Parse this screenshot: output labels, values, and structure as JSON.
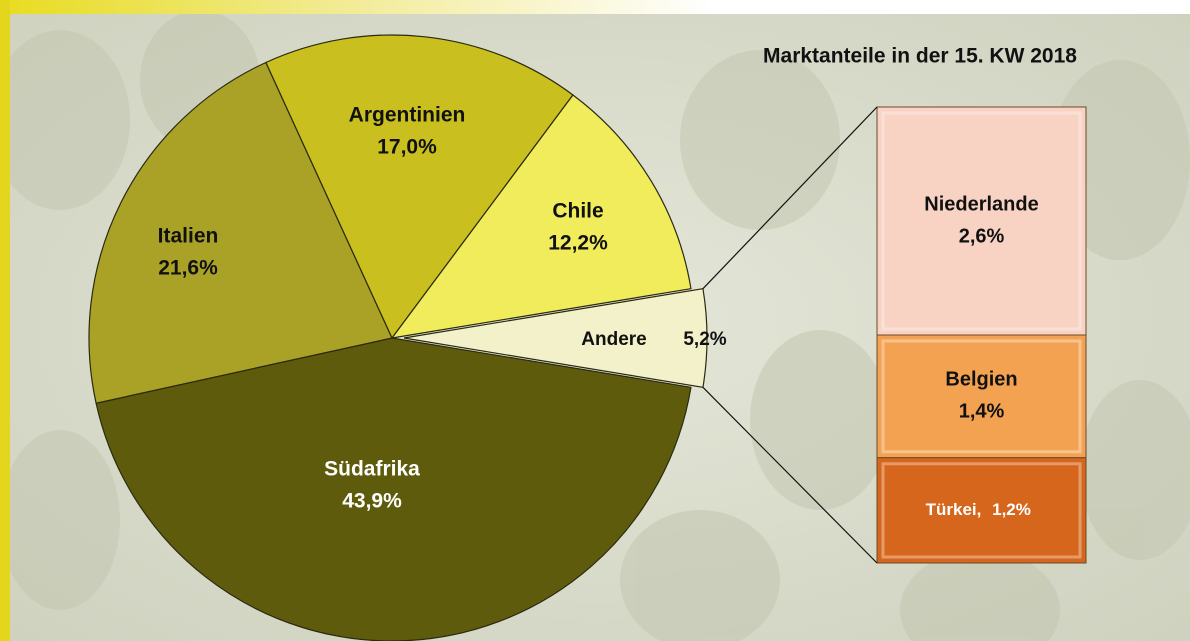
{
  "chart_data": {
    "type": "pie",
    "title": "Marktanteile in der 15. KW 2018",
    "categories": [
      "Südafrika",
      "Italien",
      "Argentinien",
      "Chile",
      "Andere"
    ],
    "values": [
      43.9,
      21.6,
      17.0,
      12.2,
      5.2
    ],
    "value_labels": [
      "43,9%",
      "21,6%",
      "17,0%",
      "12,2%",
      "5,2%"
    ],
    "colors": [
      "#5e5c0c",
      "#aaa226",
      "#c9bf1e",
      "#f1ec5c",
      "#f3f1c9"
    ],
    "breakout": {
      "type": "bar",
      "categories": [
        "Niederlande",
        "Belgien",
        "Türkei,"
      ],
      "values": [
        2.6,
        1.4,
        1.2
      ],
      "value_labels": [
        "2,6%",
        "1,4%",
        "1,2%"
      ],
      "colors": [
        "#f8d2c2",
        "#f3a252",
        "#d6661c"
      ]
    }
  }
}
